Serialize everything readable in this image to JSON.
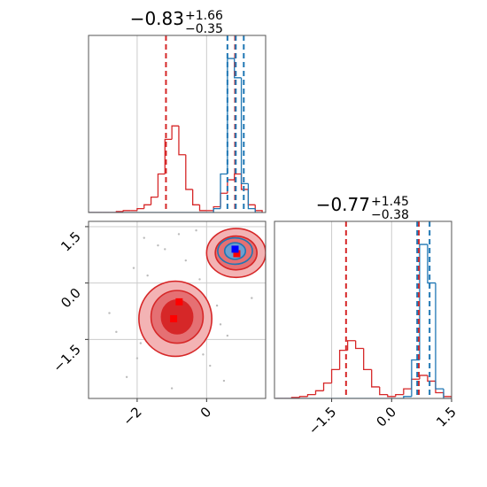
{
  "chart_data": [
    {
      "type": "histogram",
      "title": "−0.83",
      "title_upper": "+1.66",
      "title_lower": "−0.35",
      "xlim": [
        -3.4,
        1.7
      ],
      "ylim": [
        0,
        92
      ],
      "xgrid": [
        -2,
        0
      ],
      "bins": [
        -3.4,
        -3.2,
        -3.0,
        -2.8,
        -2.6,
        -2.4,
        -2.2,
        -2.0,
        -1.8,
        -1.6,
        -1.4,
        -1.2,
        -1.0,
        -0.8,
        -0.6,
        -0.4,
        -0.2,
        0.0,
        0.2,
        0.4,
        0.6,
        0.8,
        1.0,
        1.2,
        1.4,
        1.6
      ],
      "series": [
        {
          "color": "#d62728",
          "values": [
            0,
            0,
            0,
            0,
            0.5,
            1,
            1,
            2,
            4,
            8,
            20,
            38,
            45,
            30,
            12,
            4,
            1,
            1,
            3,
            10,
            17,
            20,
            12,
            4,
            1
          ]
        },
        {
          "color": "#1f77b4",
          "values": [
            0,
            0,
            0,
            0,
            0,
            0,
            0,
            0,
            0,
            0,
            0,
            0,
            0,
            0,
            0,
            0,
            0,
            0,
            2,
            20,
            80,
            70,
            15,
            2,
            0
          ]
        }
      ],
      "dashed_lines": [
        {
          "x": -1.17,
          "color": "#d62728"
        },
        {
          "x": 0.82,
          "color": "#d62728"
        },
        {
          "x": 0.6,
          "color": "#1f77b4"
        },
        {
          "x": 0.84,
          "color": "#1f77b4"
        },
        {
          "x": 1.07,
          "color": "#1f77b4"
        }
      ]
    },
    {
      "type": "density2d",
      "xlim": [
        -3.4,
        1.7
      ],
      "ylim": [
        -3.07,
        1.64
      ],
      "xticks": [
        {
          "value": -2,
          "label": "−2"
        },
        0
      ],
      "yticks": [
        1.5,
        {
          "value": 0,
          "label": "0.0"
        },
        {
          "value": -1.5,
          "label": "−1.5"
        }
      ],
      "points": {
        "x": [
          -2.1,
          -1.8,
          -1.5,
          -2.6,
          -1.2,
          -0.3,
          0.1,
          0.4,
          -0.6,
          -2.3,
          -1.9,
          -0.2,
          0.3,
          -1.0,
          -2.8,
          -0.1,
          0.5,
          -1.4,
          -0.4,
          0.2,
          -2.0,
          -1.7,
          0.6,
          -0.8,
          1.3
        ],
        "y": [
          0.4,
          1.2,
          -0.2,
          -1.3,
          0.9,
          1.4,
          -2.2,
          -1.1,
          0.6,
          -2.5,
          -1.6,
          0.1,
          -0.6,
          -2.8,
          -0.8,
          -1.9,
          -2.6,
          1.0,
          -0.3,
          0.7,
          -2.0,
          0.2,
          -1.4,
          1.3,
          -0.4
        ]
      },
      "contours": [
        {
          "cx": -0.9,
          "cy": -0.95,
          "rx": 1.05,
          "ry": 1.0,
          "fill": "#f3b3b4",
          "stroke": "#d62728"
        },
        {
          "cx": -0.85,
          "cy": -0.9,
          "rx": 0.75,
          "ry": 0.7,
          "fill": "#e57073",
          "stroke": "#d62728"
        },
        {
          "cx": -0.85,
          "cy": -0.9,
          "rx": 0.45,
          "ry": 0.45,
          "fill": "#d62728",
          "stroke": "#d62728"
        },
        {
          "cx": 0.85,
          "cy": 0.8,
          "rx": 0.85,
          "ry": 0.65,
          "fill": "#f3b3b4",
          "stroke": "#d62728"
        },
        {
          "cx": 0.85,
          "cy": 0.8,
          "rx": 0.6,
          "ry": 0.45,
          "fill": "#e57073",
          "stroke": "#d62728"
        },
        {
          "cx": 0.82,
          "cy": 0.85,
          "rx": 0.5,
          "ry": 0.35,
          "fill": "none",
          "stroke": "#1f77b4"
        },
        {
          "cx": 0.82,
          "cy": 0.85,
          "rx": 0.3,
          "ry": 0.22,
          "fill": "#6fa0cf",
          "stroke": "#1f77b4"
        }
      ],
      "markers": [
        {
          "x": -0.79,
          "y": -0.5,
          "color": "#ff0000"
        },
        {
          "x": -0.95,
          "y": -0.95,
          "color": "#ff0000"
        },
        {
          "x": 0.87,
          "y": 0.78,
          "color": "#ff0000"
        },
        {
          "x": 0.82,
          "y": 0.9,
          "color": "#0000ff"
        }
      ]
    },
    {
      "type": "histogram",
      "title": "−0.77",
      "title_upper": "+1.45",
      "title_lower": "−0.38",
      "xlim": [
        -2.93,
        1.5
      ],
      "ylim": [
        0,
        92
      ],
      "xticks": [
        {
          "value": -1.5,
          "label": "−1.5"
        },
        {
          "value": 0,
          "label": "0.0"
        },
        1.5
      ],
      "bins": [
        -2.9,
        -2.7,
        -2.5,
        -2.3,
        -2.1,
        -1.9,
        -1.7,
        -1.5,
        -1.3,
        -1.1,
        -0.9,
        -0.7,
        -0.5,
        -0.3,
        -0.1,
        0.1,
        0.3,
        0.5,
        0.7,
        0.9,
        1.1,
        1.3,
        1.5
      ],
      "series": [
        {
          "color": "#d62728",
          "values": [
            0,
            0,
            0.5,
            1,
            2,
            4,
            8,
            15,
            25,
            30,
            26,
            15,
            6,
            2,
            1,
            2,
            5,
            10,
            12,
            9,
            3,
            1
          ]
        },
        {
          "color": "#1f77b4",
          "values": [
            0,
            0,
            0,
            0,
            0,
            0,
            0,
            0,
            0,
            0,
            0,
            0,
            0,
            0,
            0,
            0,
            1,
            20,
            80,
            60,
            5,
            0
          ]
        }
      ],
      "dashed_lines": [
        {
          "x": -1.14,
          "color": "#d62728"
        },
        {
          "x": 0.68,
          "color": "#d62728"
        },
        {
          "x": 0.64,
          "color": "#1f77b4"
        },
        {
          "x": 0.95,
          "color": "#1f77b4"
        }
      ]
    }
  ]
}
